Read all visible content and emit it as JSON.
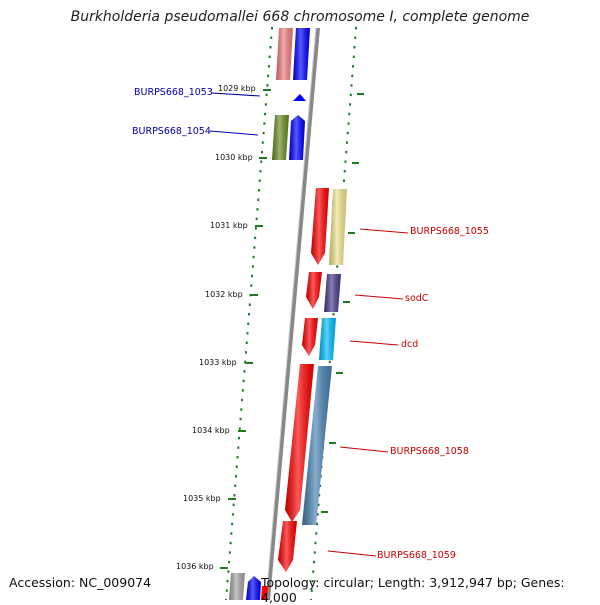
{
  "title": "Burkholderia pseudomallei 668 chromosome I, complete genome",
  "footer": {
    "accession": "Accession: NC_009074",
    "topology": "Topology: circular; Length: 3,912,947 bp; Genes: 4,000"
  },
  "ticks": [
    "1029 kbp",
    "1030 kbp",
    "1031 kbp",
    "1032 kbp",
    "1033 kbp",
    "1034 kbp",
    "1035 kbp",
    "1036 kbp"
  ],
  "gene_labels": [
    {
      "text": "BURPS668_1053",
      "color": "#0000aa"
    },
    {
      "text": "BURPS668_1054",
      "color": "#0000aa"
    },
    {
      "text": "BURPS668_1055",
      "color": "#cc0000"
    },
    {
      "text": "sodC",
      "color": "#cc0000"
    },
    {
      "text": "dcd",
      "color": "#cc0000"
    },
    {
      "text": "BURPS668_1058",
      "color": "#cc0000"
    },
    {
      "text": "BURPS668_1059",
      "color": "#cc0000"
    }
  ],
  "colors": {
    "backbone": "#888888",
    "tick": "#227722",
    "reverse_cds": "#ff0000",
    "forward_cds": "#0000ff",
    "pink": "#f08080",
    "olive": "#6b8e23",
    "khaki": "#f0e68c",
    "slate": "#483d8b",
    "sky": "#00bfff",
    "steel": "#4682b4",
    "gray": "#aaaaaa"
  }
}
